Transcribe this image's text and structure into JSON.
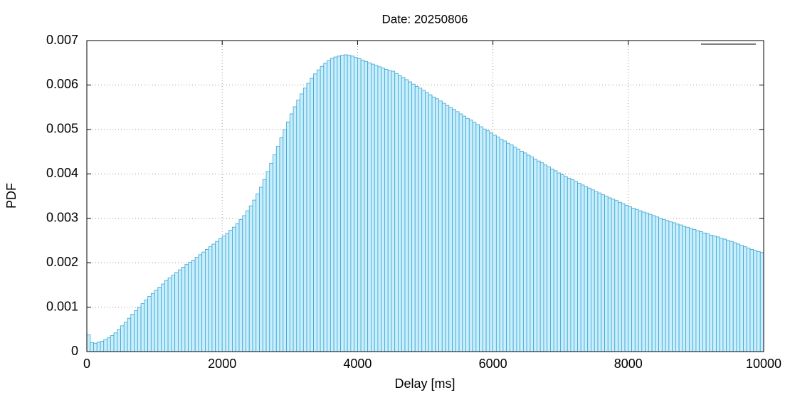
{
  "chart_data": {
    "type": "histogram",
    "title": "Date: 20250806",
    "xlabel": "Delay [ms]",
    "ylabel": "PDF",
    "bins": [
      0,
      50,
      100,
      150,
      200,
      250,
      300,
      350,
      400,
      450,
      500,
      550,
      600,
      650,
      700,
      750,
      800,
      850,
      900,
      950,
      1000,
      1050,
      1100,
      1150,
      1200,
      1250,
      1300,
      1350,
      1400,
      1450,
      1500,
      1550,
      1600,
      1650,
      1700,
      1750,
      1800,
      1850,
      1900,
      1950,
      2000,
      2050,
      2100,
      2150,
      2200,
      2250,
      2300,
      2350,
      2400,
      2450,
      2500,
      2550,
      2600,
      2650,
      2700,
      2750,
      2800,
      2850,
      2900,
      2950,
      3000,
      3050,
      3100,
      3150,
      3200,
      3250,
      3300,
      3350,
      3400,
      3450,
      3500,
      3550,
      3600,
      3650,
      3700,
      3750,
      3800,
      3850,
      3900,
      3950,
      4000,
      4050,
      4100,
      4150,
      4200,
      4250,
      4300,
      4350,
      4400,
      4450,
      4500,
      4550,
      4600,
      4650,
      4700,
      4750,
      4800,
      4850,
      4900,
      4950,
      5000,
      5050,
      5100,
      5150,
      5200,
      5250,
      5300,
      5350,
      5400,
      5450,
      5500,
      5550,
      5600,
      5650,
      5700,
      5750,
      5800,
      5850,
      5900,
      5950,
      6000,
      6050,
      6100,
      6150,
      6200,
      6250,
      6300,
      6350,
      6400,
      6450,
      6500,
      6550,
      6600,
      6650,
      6700,
      6750,
      6800,
      6850,
      6900,
      6950,
      7000,
      7050,
      7100,
      7150,
      7200,
      7250,
      7300,
      7350,
      7400,
      7450,
      7500,
      7550,
      7600,
      7650,
      7700,
      7750,
      7800,
      7850,
      7900,
      7950,
      8000,
      8050,
      8100,
      8150,
      8200,
      8250,
      8300,
      8350,
      8400,
      8450,
      8500,
      8550,
      8600,
      8650,
      8700,
      8750,
      8800,
      8850,
      8900,
      8950,
      9000,
      9050,
      9100,
      9150,
      9200,
      9250,
      9300,
      9350,
      9400,
      9450,
      9500,
      9550,
      9600,
      9650,
      9700,
      9750,
      9800,
      9850,
      9900,
      9950,
      10000
    ],
    "values": [
      0.00038,
      0.0002,
      0.00019,
      0.00021,
      0.00023,
      0.00027,
      0.00031,
      0.00036,
      0.00042,
      0.0005,
      0.00058,
      0.00066,
      0.00075,
      0.00084,
      0.00092,
      0.001,
      0.00108,
      0.00116,
      0.00124,
      0.00131,
      0.00138,
      0.00145,
      0.00152,
      0.0016,
      0.00166,
      0.00172,
      0.00178,
      0.00184,
      0.0019,
      0.00196,
      0.00201,
      0.00206,
      0.00212,
      0.00218,
      0.00224,
      0.0023,
      0.00236,
      0.00242,
      0.00248,
      0.00254,
      0.0026,
      0.00266,
      0.00273,
      0.0028,
      0.00288,
      0.00297,
      0.00306,
      0.00317,
      0.00328,
      0.00341,
      0.00355,
      0.0037,
      0.00387,
      0.00405,
      0.00424,
      0.00443,
      0.00462,
      0.00481,
      0.00499,
      0.00517,
      0.00535,
      0.00551,
      0.00566,
      0.0058,
      0.00593,
      0.00604,
      0.00615,
      0.00625,
      0.00634,
      0.00642,
      0.00649,
      0.00655,
      0.0066,
      0.00663,
      0.00665,
      0.00667,
      0.00668,
      0.00667,
      0.00665,
      0.00662,
      0.00659,
      0.00656,
      0.00653,
      0.0065,
      0.00647,
      0.00644,
      0.00641,
      0.00638,
      0.00635,
      0.00632,
      0.00631,
      0.00626,
      0.00621,
      0.00617,
      0.00612,
      0.00607,
      0.00602,
      0.00597,
      0.00593,
      0.00588,
      0.00583,
      0.00578,
      0.00573,
      0.00569,
      0.00564,
      0.00559,
      0.00554,
      0.00549,
      0.00545,
      0.0054,
      0.00535,
      0.0053,
      0.00525,
      0.00521,
      0.00516,
      0.00511,
      0.00506,
      0.00501,
      0.00497,
      0.00492,
      0.00487,
      0.00483,
      0.00478,
      0.00474,
      0.00469,
      0.00465,
      0.0046,
      0.00456,
      0.00451,
      0.00447,
      0.00442,
      0.00438,
      0.00433,
      0.00429,
      0.00425,
      0.0042,
      0.00416,
      0.00411,
      0.00407,
      0.00402,
      0.00398,
      0.00394,
      0.0039,
      0.00387,
      0.00383,
      0.00379,
      0.00375,
      0.00371,
      0.00368,
      0.00364,
      0.0036,
      0.00357,
      0.00353,
      0.0035,
      0.00346,
      0.00343,
      0.0034,
      0.00336,
      0.00333,
      0.00329,
      0.00326,
      0.00323,
      0.0032,
      0.00317,
      0.00314,
      0.00312,
      0.00309,
      0.00306,
      0.00303,
      0.003,
      0.00297,
      0.00295,
      0.00292,
      0.0029,
      0.00287,
      0.00285,
      0.00282,
      0.0028,
      0.00277,
      0.00275,
      0.00272,
      0.0027,
      0.00267,
      0.00265,
      0.00262,
      0.0026,
      0.00258,
      0.00255,
      0.00253,
      0.0025,
      0.00248,
      0.00245,
      0.00242,
      0.00239,
      0.00236,
      0.00233,
      0.0023,
      0.00228,
      0.00225,
      0.00223
    ],
    "color": "#c9effc",
    "edgecolor": "#3aa3d2",
    "xlim": [
      0,
      10000
    ],
    "xticks": [
      0,
      2000,
      4000,
      6000,
      8000,
      10000
    ],
    "ylim": [
      0,
      0.007
    ],
    "yticks": [
      0,
      0.001,
      0.002,
      0.003,
      0.004,
      0.005,
      0.006,
      0.007
    ],
    "grid": true
  }
}
